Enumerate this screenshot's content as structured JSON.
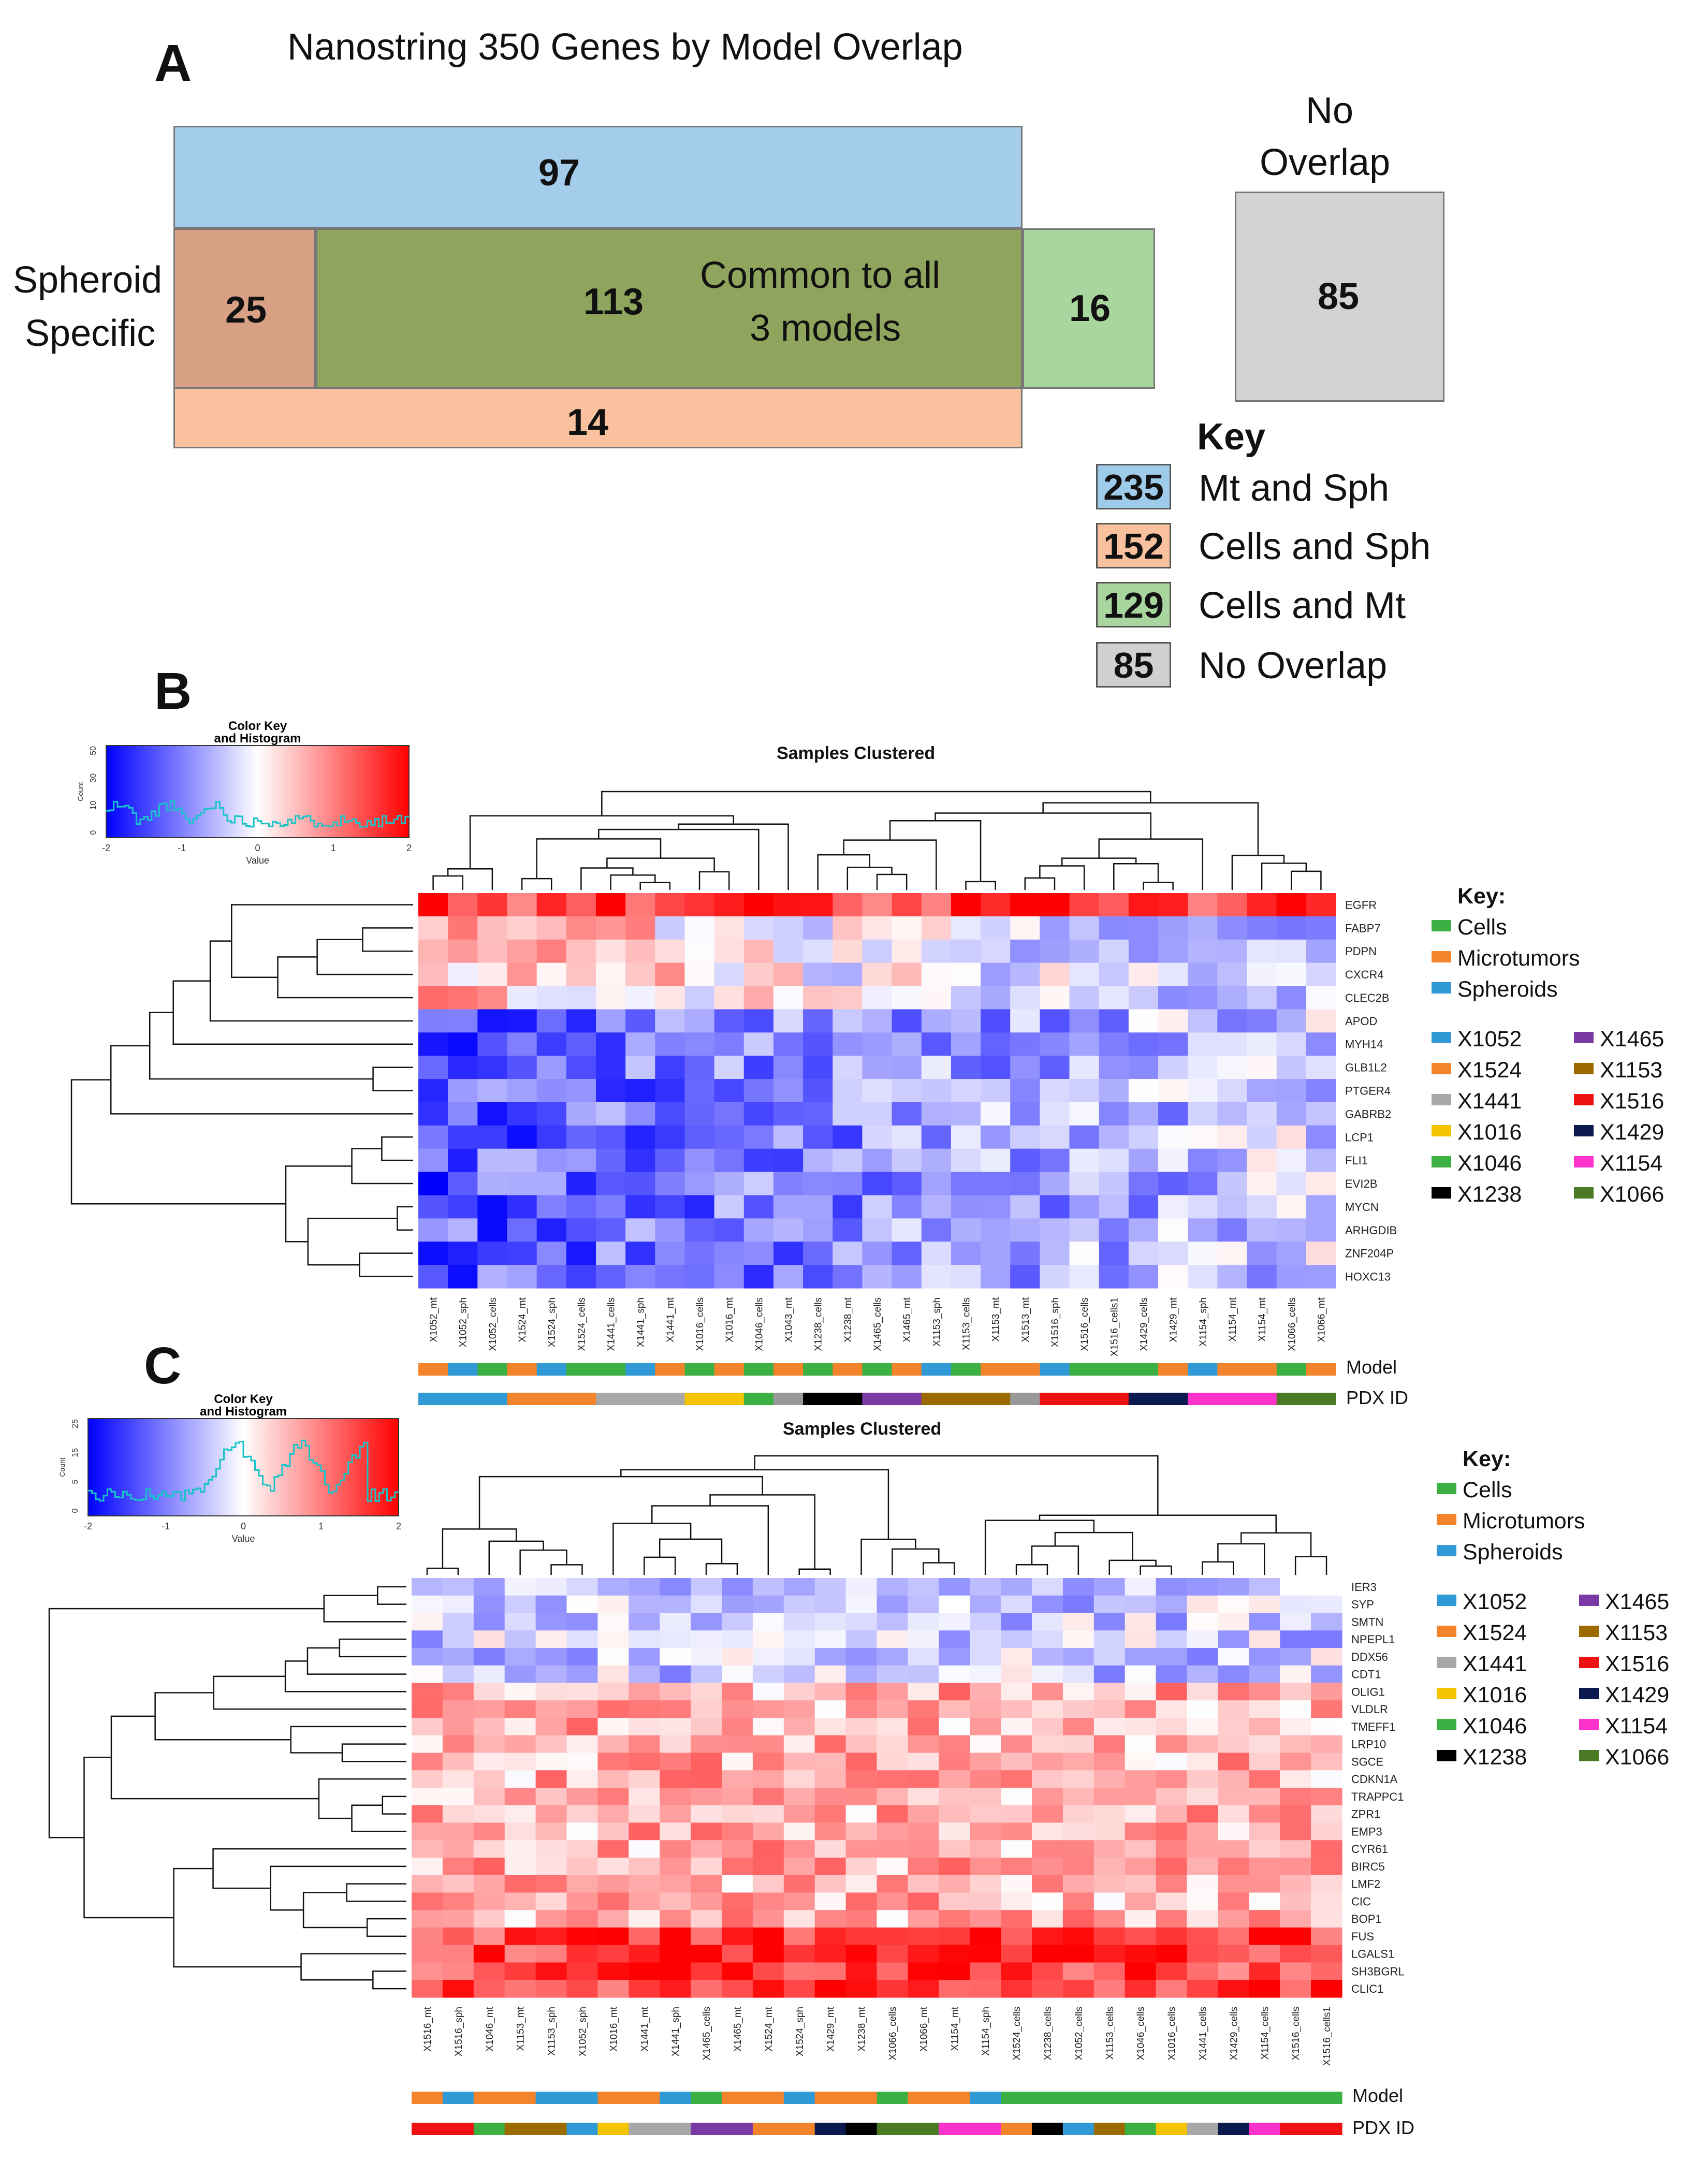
{
  "panel_a": {
    "label": "A",
    "title": "Nanostring 350 Genes by Model Overlap",
    "regions": {
      "mt_sph_only": "97",
      "spheroid_specific": "25",
      "common": "113",
      "common_label_1": "Common to all",
      "common_label_2": "3 models",
      "cells_mt_only": "16",
      "cells_sph_only": "14",
      "no_overlap": "85"
    },
    "spheroid_specific_label_1": "Spheroid",
    "spheroid_specific_label_2": "Specific",
    "no_overlap_label_1": "No",
    "no_overlap_label_2": "Overlap",
    "key_title": "Key",
    "key": [
      {
        "count": "235",
        "label": "Mt and Sph",
        "color": "#9ecbea"
      },
      {
        "count": "152",
        "label": "Cells and Sph",
        "color": "#f9c19d"
      },
      {
        "count": "129",
        "label": "Cells and Mt",
        "color": "#a9d59e"
      },
      {
        "count": "85",
        "label": "No Overlap",
        "color": "#d0d0d0"
      }
    ]
  },
  "panel_b": {
    "label": "B",
    "title": "Samples Clustered",
    "color_key_title_1": "Color Key",
    "color_key_title_2": "and Histogram",
    "count_label": "Count",
    "value_label": "Value",
    "value_ticks": [
      "-2",
      "-1",
      "0",
      "1",
      "2"
    ],
    "count_ticks": [
      "0",
      "10",
      "30",
      "50"
    ],
    "genes": [
      "EGFR",
      "FABP7",
      "PDPN",
      "CXCR4",
      "CLEC2B",
      "APOD",
      "MYH14",
      "GLB1L2",
      "PTGER4",
      "GABRB2",
      "LCP1",
      "FLI1",
      "EVI2B",
      "MYCN",
      "ARHGDIB",
      "ZNF204P",
      "HOXC13"
    ],
    "samples": [
      "X1052_mt",
      "X1052_sph",
      "X1052_cells",
      "X1524_mt",
      "X1524_sph",
      "X1524_cells",
      "X1441_cells",
      "X1441_sph",
      "X1441_mt",
      "X1016_cells",
      "X1016_mt",
      "X1046_cells",
      "X1043_mt",
      "X1238_cells",
      "X1238_mt",
      "X1465_cells",
      "X1465_mt",
      "X1153_sph",
      "X1153_cells",
      "X1153_mt",
      "X1513_mt",
      "X1516_sph",
      "X1516_cells",
      "X1516_cells1",
      "X1429_cells",
      "X1429_mt",
      "X1154_sph",
      "X1154_mt",
      "X1154_mt",
      "X1066_cells",
      "X1066_mt"
    ],
    "model_bar_label": "Model",
    "pdx_bar_label": "PDX ID"
  },
  "panel_c": {
    "label": "C",
    "title": "Samples Clustered",
    "color_key_title_1": "Color Key",
    "color_key_title_2": "and Histogram",
    "count_label": "Count",
    "value_label": "Value",
    "value_ticks": [
      "-2",
      "-1",
      "0",
      "1",
      "2"
    ],
    "count_ticks": [
      "0",
      "5",
      "15",
      "25"
    ],
    "genes": [
      "IER3",
      "SYP",
      "SMTN",
      "NPEPL1",
      "DDX56",
      "CDT1",
      "OLIG1",
      "VLDLR",
      "TMEFF1",
      "LRP10",
      "SGCE",
      "CDKN1A",
      "TRAPPC1",
      "ZPR1",
      "EMP3",
      "CYR61",
      "BIRC5",
      "LMF2",
      "CIC",
      "BOP1",
      "FUS",
      "LGALS1",
      "SH3BGRL",
      "CLIC1"
    ],
    "samples": [
      "X1516_mt",
      "X1516_sph",
      "X1046_mt",
      "X1153_mt",
      "X1153_sph",
      "X1052_sph",
      "X1016_mt",
      "X1441_mt",
      "X1441_sph",
      "X1465_cells",
      "X1465_mt",
      "X1524_mt",
      "X1524_sph",
      "X1429_mt",
      "X1238_mt",
      "X1066_cells",
      "X1066_mt",
      "X1154_mt",
      "X1154_sph",
      "X1524_cells",
      "X1238_cells",
      "X1052_cells",
      "X1153_cells",
      "X1046_cells",
      "X1016_cells",
      "X1441_cells",
      "X1429_cells",
      "X1154_cells",
      "X1516_cells",
      "X1516_cells1"
    ],
    "model_bar_label": "Model",
    "pdx_bar_label": "PDX ID"
  },
  "legend": {
    "title": "Key:",
    "models": [
      {
        "name": "Cells",
        "color": "#3cb043"
      },
      {
        "name": "Microtumors",
        "color": "#f4842c"
      },
      {
        "name": "Spheroids",
        "color": "#2f9ad6"
      }
    ],
    "pdx_left": [
      {
        "name": "X1052",
        "color": "#2f9ad6"
      },
      {
        "name": "X1524",
        "color": "#f4842c"
      },
      {
        "name": "X1441",
        "color": "#a8a8a8"
      },
      {
        "name": "X1016",
        "color": "#f5c400"
      },
      {
        "name": "X1046",
        "color": "#3cb043"
      },
      {
        "name": "X1238",
        "color": "#000000"
      }
    ],
    "pdx_right": [
      {
        "name": "X1465",
        "color": "#7b3aa3"
      },
      {
        "name": "X1153",
        "color": "#9c6b00"
      },
      {
        "name": "X1516",
        "color": "#ee1111"
      },
      {
        "name": "X1429",
        "color": "#0d1a4f"
      },
      {
        "name": "X1154",
        "color": "#ff33cc"
      },
      {
        "name": "X1066",
        "color": "#4a7a23"
      }
    ]
  }
}
